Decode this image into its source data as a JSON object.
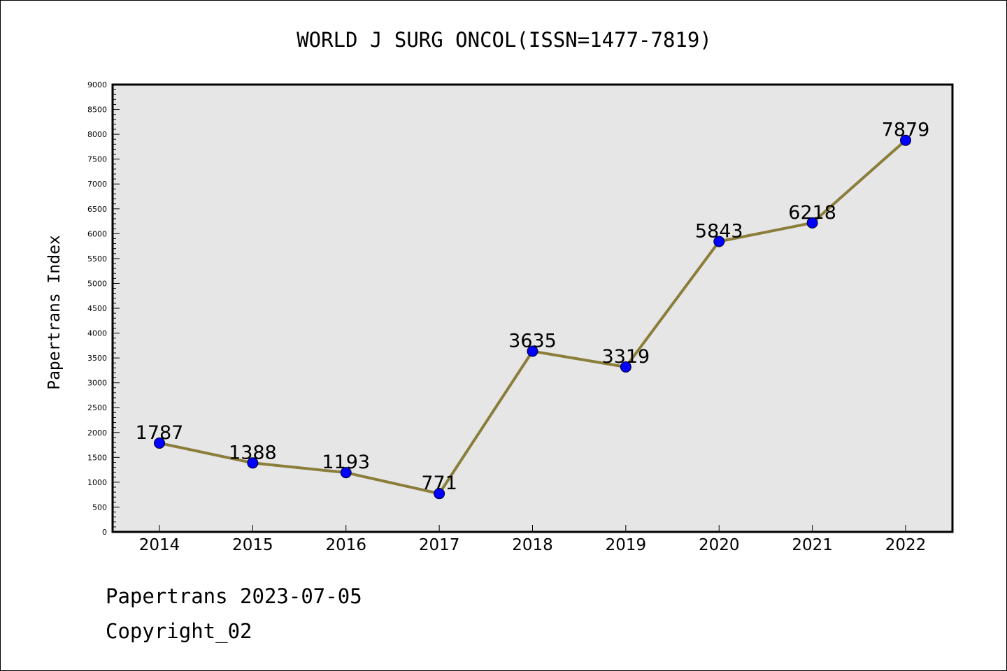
{
  "chart_data": {
    "type": "line",
    "title": "WORLD J SURG ONCOL(ISSN=1477-7819)",
    "xlabel": "",
    "ylabel": "Papertrans Index",
    "categories": [
      "2014",
      "2015",
      "2016",
      "2017",
      "2018",
      "2019",
      "2020",
      "2021",
      "2022"
    ],
    "series": [
      {
        "values": [
          1787,
          1388,
          1193,
          771,
          3635,
          3319,
          5843,
          6218,
          7879
        ]
      }
    ],
    "data_labels": [
      "1787",
      "1388",
      "1193",
      "771",
      "3635",
      "3319",
      "5843",
      "6218",
      "7879"
    ],
    "ylim": [
      0,
      9000
    ],
    "yticks": [
      "0",
      "500",
      "1000",
      "1500",
      "2000",
      "2500",
      "3000",
      "3500",
      "4000",
      "4500",
      "5000",
      "5500",
      "6000",
      "6500",
      "7000",
      "7500",
      "8000",
      "8500",
      "9000"
    ],
    "grid": false,
    "colors": {
      "line": "#8b7d3a",
      "marker": "#0000ff",
      "plot_background": "#e6e6e6"
    }
  },
  "footer": {
    "date_line": "Papertrans 2023-07-05",
    "copyright_line": "Copyright_02"
  }
}
